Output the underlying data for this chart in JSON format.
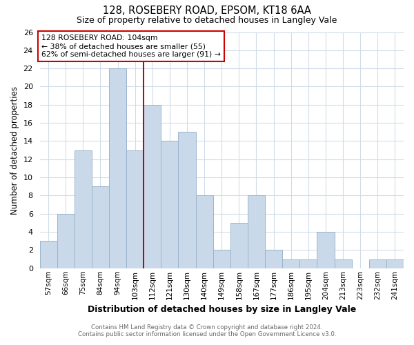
{
  "title": "128, ROSEBERY ROAD, EPSOM, KT18 6AA",
  "subtitle": "Size of property relative to detached houses in Langley Vale",
  "xlabel": "Distribution of detached houses by size in Langley Vale",
  "ylabel": "Number of detached properties",
  "bin_labels": [
    "57sqm",
    "66sqm",
    "75sqm",
    "84sqm",
    "94sqm",
    "103sqm",
    "112sqm",
    "121sqm",
    "130sqm",
    "140sqm",
    "149sqm",
    "158sqm",
    "167sqm",
    "177sqm",
    "186sqm",
    "195sqm",
    "204sqm",
    "213sqm",
    "223sqm",
    "232sqm",
    "241sqm"
  ],
  "bar_heights": [
    3,
    6,
    13,
    9,
    22,
    13,
    18,
    14,
    15,
    8,
    2,
    5,
    8,
    2,
    1,
    1,
    4,
    1,
    0,
    1,
    1
  ],
  "highlight_bin_index": 5,
  "bar_color": "#c9d9ea",
  "bar_edge_color": "#9ab4cc",
  "highlight_line_color": "#cc0000",
  "ylim": [
    0,
    26
  ],
  "yticks": [
    0,
    2,
    4,
    6,
    8,
    10,
    12,
    14,
    16,
    18,
    20,
    22,
    24,
    26
  ],
  "annotation_line1": "128 ROSEBERY ROAD: 104sqm",
  "annotation_line2": "← 38% of detached houses are smaller (55)",
  "annotation_line3": "62% of semi-detached houses are larger (91) →",
  "annotation_box_edge": "#cc0000",
  "footer_line1": "Contains HM Land Registry data © Crown copyright and database right 2024.",
  "footer_line2": "Contains public sector information licensed under the Open Government Licence v3.0.",
  "fig_background": "#ffffff",
  "plot_background": "#ffffff",
  "grid_color": "#d0dce8"
}
